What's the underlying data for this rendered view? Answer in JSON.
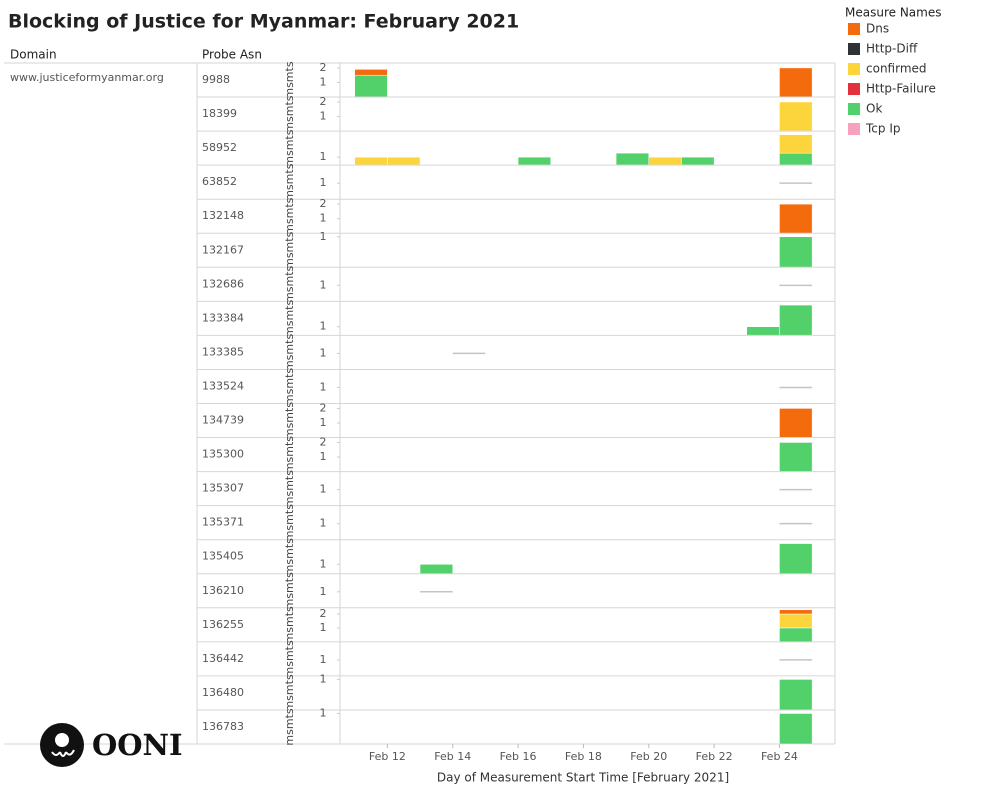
{
  "chart_data": {
    "type": "bar",
    "title": "Blocking of Justice for Myanmar: February 2021",
    "column_headers": [
      "Domain",
      "Probe Asn"
    ],
    "domain": "www.justiceformyanmar.org",
    "y_label": "msmts",
    "x_label": "Day of Measurement Start Time [February 2021]",
    "legend_title": "Measure Names",
    "series": [
      {
        "name": "Dns",
        "color": "#f46b0e"
      },
      {
        "name": "Http-Diff",
        "color": "#2e3136"
      },
      {
        "name": "confirmed",
        "color": "#fcd43c"
      },
      {
        "name": "Http-Failure",
        "color": "#e2303c"
      },
      {
        "name": "Ok",
        "color": "#52d06a"
      },
      {
        "name": "Tcp Ip",
        "color": "#f7a1bf"
      }
    ],
    "line_color": "#c4c4c4",
    "xlim": [
      10.55,
      25.7
    ],
    "xticks": [
      {
        "value": 12,
        "label": "Feb 12"
      },
      {
        "value": 14,
        "label": "Feb 14"
      },
      {
        "value": 16,
        "label": "Feb 16"
      },
      {
        "value": 18,
        "label": "Feb 18"
      },
      {
        "value": 20,
        "label": "Feb 20"
      },
      {
        "value": 22,
        "label": "Feb 22"
      },
      {
        "value": 24,
        "label": "Feb 24"
      }
    ],
    "rows": [
      {
        "asn": "9988",
        "ylim": [
          0,
          2.2
        ],
        "yticks": [
          1,
          2
        ],
        "bars": [
          {
            "x": 11,
            "values": [
              0.4,
              null,
              null,
              null,
              1.5,
              null
            ]
          },
          {
            "x": 24,
            "values": [
              2,
              null,
              null,
              null,
              null,
              null
            ]
          }
        ],
        "lines": []
      },
      {
        "asn": "18399",
        "ylim": [
          0,
          2.2
        ],
        "yticks": [
          1,
          2
        ],
        "bars": [
          {
            "x": 24,
            "values": [
              null,
              null,
              2,
              null,
              null,
              null
            ]
          }
        ],
        "lines": []
      },
      {
        "asn": "58952",
        "ylim": [
          0,
          4
        ],
        "yticks": [
          1
        ],
        "bars": [
          {
            "x": 11,
            "values": [
              null,
              null,
              1,
              null,
              null,
              null
            ]
          },
          {
            "x": 12,
            "values": [
              null,
              null,
              1,
              null,
              null,
              null
            ]
          },
          {
            "x": 16,
            "values": [
              null,
              null,
              null,
              null,
              1,
              null
            ]
          },
          {
            "x": 19,
            "values": [
              null,
              null,
              null,
              null,
              1.5,
              null
            ]
          },
          {
            "x": 20,
            "values": [
              null,
              null,
              1,
              null,
              null,
              null
            ]
          },
          {
            "x": 21,
            "values": [
              null,
              null,
              null,
              null,
              1,
              null
            ]
          },
          {
            "x": 24,
            "values": [
              null,
              null,
              2.3,
              null,
              1.5,
              null
            ]
          }
        ],
        "lines": []
      },
      {
        "asn": "63852",
        "ylim": [
          0,
          2
        ],
        "yticks": [
          1
        ],
        "bars": [],
        "lines": [
          {
            "x": 24,
            "value": 1
          }
        ]
      },
      {
        "asn": "132148",
        "ylim": [
          0,
          2.2
        ],
        "yticks": [
          1,
          2
        ],
        "bars": [
          {
            "x": 24,
            "values": [
              2,
              null,
              null,
              null,
              null,
              null
            ]
          }
        ],
        "lines": []
      },
      {
        "asn": "132167",
        "ylim": [
          0,
          1.05
        ],
        "yticks": [
          1
        ],
        "bars": [
          {
            "x": 24,
            "values": [
              null,
              null,
              null,
              null,
              1,
              null
            ]
          }
        ],
        "lines": []
      },
      {
        "asn": "132686",
        "ylim": [
          0,
          2
        ],
        "yticks": [
          1
        ],
        "bars": [],
        "lines": [
          {
            "x": 24,
            "value": 1
          }
        ]
      },
      {
        "asn": "133384",
        "ylim": [
          0,
          3.7
        ],
        "yticks": [
          1
        ],
        "bars": [
          {
            "x": 23,
            "values": [
              null,
              null,
              null,
              null,
              1,
              null
            ]
          },
          {
            "x": 24,
            "values": [
              null,
              null,
              null,
              null,
              3.5,
              null
            ]
          }
        ],
        "lines": []
      },
      {
        "asn": "133385",
        "ylim": [
          0,
          2
        ],
        "yticks": [
          1
        ],
        "bars": [],
        "lines": [
          {
            "x": 14,
            "value": 1
          }
        ]
      },
      {
        "asn": "133524",
        "ylim": [
          0,
          2
        ],
        "yticks": [
          1
        ],
        "bars": [],
        "lines": [
          {
            "x": 24,
            "value": 1
          }
        ]
      },
      {
        "asn": "134739",
        "ylim": [
          0,
          2.2
        ],
        "yticks": [
          1,
          2
        ],
        "bars": [
          {
            "x": 24,
            "values": [
              2,
              null,
              null,
              null,
              null,
              null
            ]
          }
        ],
        "lines": []
      },
      {
        "asn": "135300",
        "ylim": [
          0,
          2.2
        ],
        "yticks": [
          1,
          2
        ],
        "bars": [
          {
            "x": 24,
            "values": [
              null,
              null,
              null,
              null,
              2,
              null
            ]
          }
        ],
        "lines": []
      },
      {
        "asn": "135307",
        "ylim": [
          0,
          2
        ],
        "yticks": [
          1
        ],
        "bars": [],
        "lines": [
          {
            "x": 24,
            "value": 1
          }
        ]
      },
      {
        "asn": "135371",
        "ylim": [
          0,
          2
        ],
        "yticks": [
          1
        ],
        "bars": [],
        "lines": [
          {
            "x": 24,
            "value": 1
          }
        ]
      },
      {
        "asn": "135405",
        "ylim": [
          0,
          3.4
        ],
        "yticks": [
          1
        ],
        "bars": [
          {
            "x": 13,
            "values": [
              null,
              null,
              null,
              null,
              1,
              null
            ]
          },
          {
            "x": 24,
            "values": [
              null,
              null,
              null,
              null,
              3.2,
              null
            ]
          }
        ],
        "lines": []
      },
      {
        "asn": "136210",
        "ylim": [
          0,
          2
        ],
        "yticks": [
          1
        ],
        "bars": [],
        "lines": [
          {
            "x": 13,
            "value": 1
          }
        ]
      },
      {
        "asn": "136255",
        "ylim": [
          0,
          2.3
        ],
        "yticks": [
          1,
          2
        ],
        "bars": [
          {
            "x": 24,
            "values": [
              0.3,
              null,
              1,
              null,
              1,
              null
            ]
          }
        ],
        "lines": []
      },
      {
        "asn": "136442",
        "ylim": [
          0,
          2
        ],
        "yticks": [
          1
        ],
        "bars": [],
        "lines": [
          {
            "x": 24,
            "value": 1
          }
        ]
      },
      {
        "asn": "136480",
        "ylim": [
          0,
          1.05
        ],
        "yticks": [
          1
        ],
        "bars": [
          {
            "x": 24,
            "values": [
              null,
              null,
              null,
              null,
              1,
              null
            ]
          }
        ],
        "lines": []
      },
      {
        "asn": "136783",
        "ylim": [
          0,
          1.05
        ],
        "yticks": [
          1
        ],
        "bars": [
          {
            "x": 24,
            "values": [
              null,
              null,
              null,
              null,
              1,
              null
            ]
          }
        ],
        "lines": []
      }
    ],
    "logo": "OONI"
  }
}
